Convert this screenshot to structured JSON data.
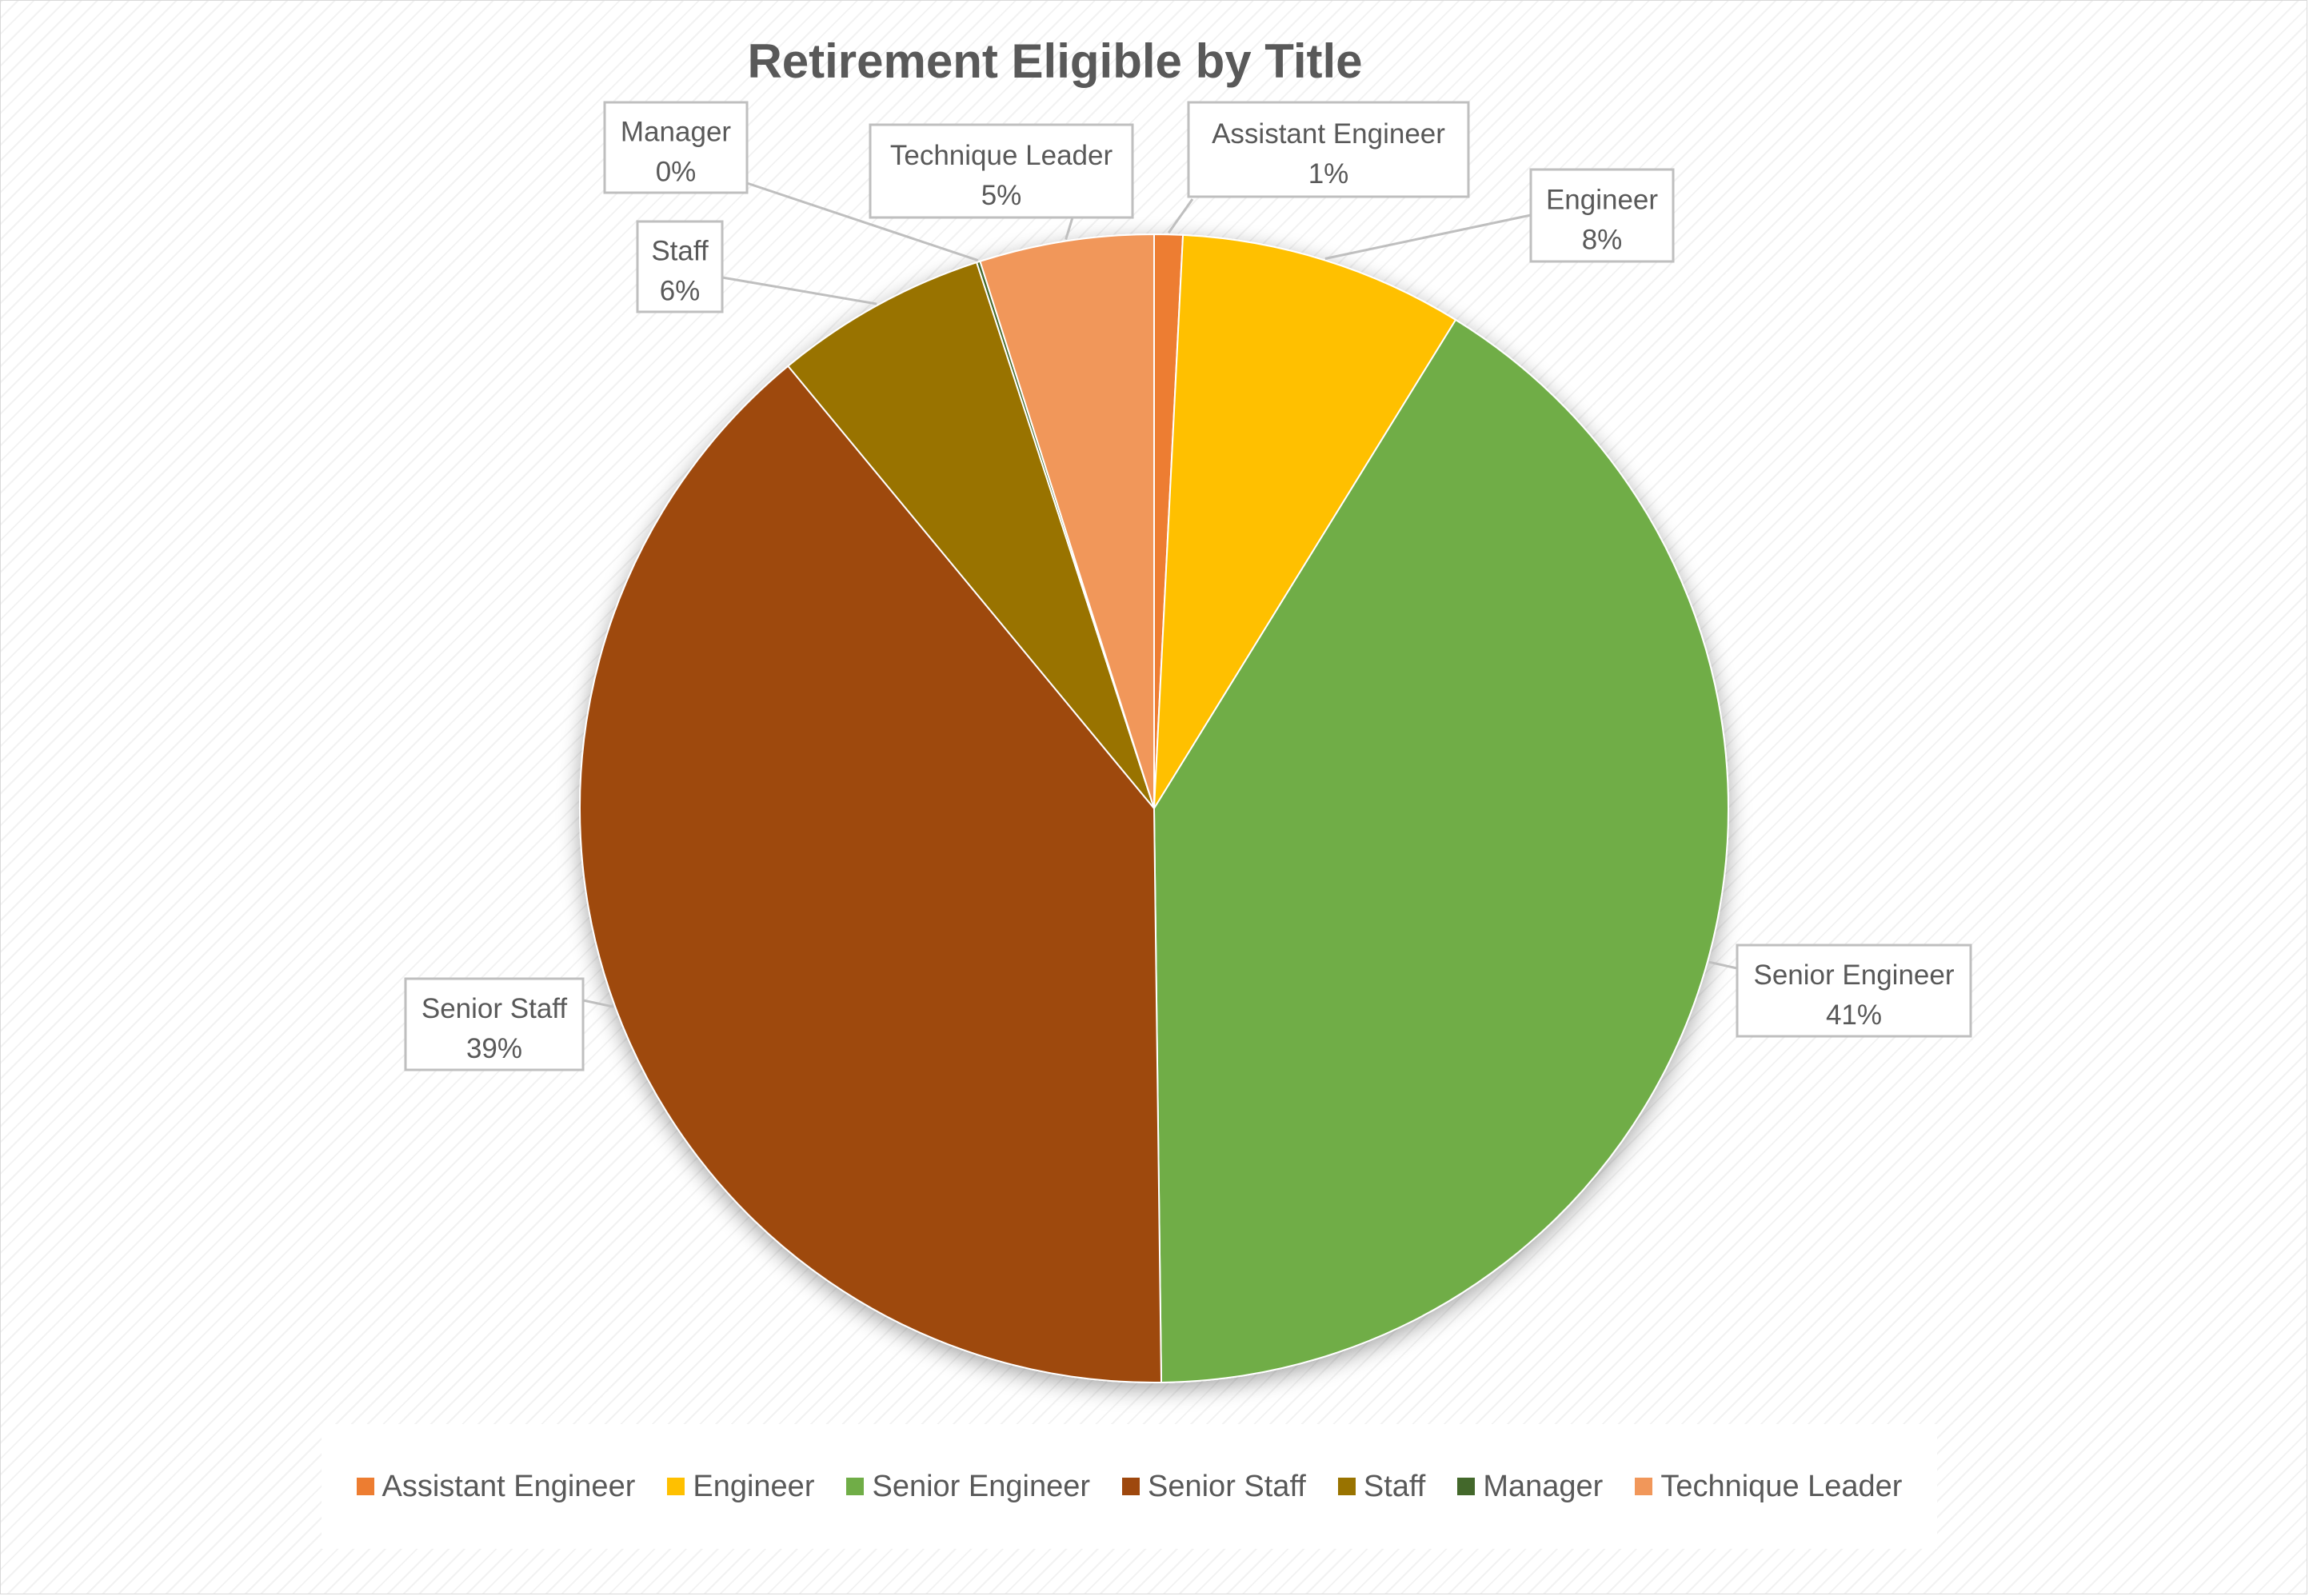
{
  "chart_data": {
    "type": "pie",
    "title": "Retirement Eligible by Title",
    "start_angle_deg": 0,
    "direction": "clockwise",
    "slices": [
      {
        "name": "Assistant Engineer",
        "value": 0.8,
        "label_pct": "1%",
        "color": "#ED7D31"
      },
      {
        "name": "Engineer",
        "value": 8.0,
        "label_pct": "8%",
        "color": "#FFC000"
      },
      {
        "name": "Senior Engineer",
        "value": 41.0,
        "label_pct": "41%",
        "color": "#70AD47"
      },
      {
        "name": "Senior Staff",
        "value": 39.2,
        "label_pct": "39%",
        "color": "#9E480E"
      },
      {
        "name": "Staff",
        "value": 6.0,
        "label_pct": "6%",
        "color": "#997300"
      },
      {
        "name": "Manager",
        "value": 0.1,
        "label_pct": "0%",
        "color": "#43682B"
      },
      {
        "name": "Technique Leader",
        "value": 4.9,
        "label_pct": "5%",
        "color": "#F1975A"
      }
    ],
    "legend_position": "bottom"
  }
}
